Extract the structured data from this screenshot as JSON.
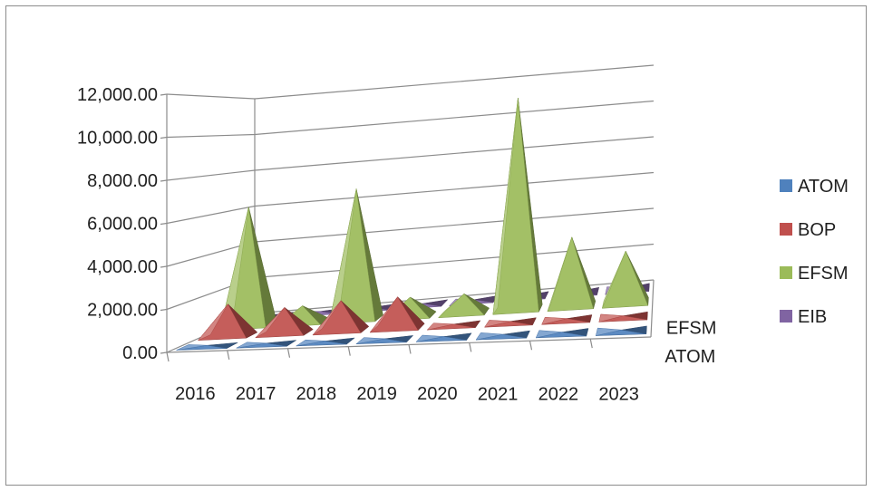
{
  "chart_data": {
    "type": "bar",
    "subtype": "3d-pyramid",
    "title": "",
    "xlabel": "",
    "ylabel": "",
    "categories": [
      "2016",
      "2017",
      "2018",
      "2019",
      "2020",
      "2021",
      "2022",
      "2023"
    ],
    "y_ticks": [
      "0.00",
      "2,000.00",
      "4,000.00",
      "6,000.00",
      "8,000.00",
      "10,000.00",
      "12,000.00"
    ],
    "ylim": [
      0,
      12000
    ],
    "depth_axis_labels": [
      "ATOM",
      "EFSM"
    ],
    "grid": true,
    "legend": "right",
    "series": [
      {
        "name": "ATOM",
        "color": "#4F81BD",
        "values": [
          50,
          50,
          50,
          50,
          50,
          50,
          50,
          50
        ]
      },
      {
        "name": "BOP",
        "color": "#C0504D",
        "values": [
          1600,
          1300,
          1500,
          1550,
          60,
          60,
          60,
          60
        ]
      },
      {
        "name": "EFSM",
        "color": "#9BBB59",
        "values": [
          6200,
          900,
          6800,
          1000,
          1000,
          11000,
          3600,
          2700
        ]
      },
      {
        "name": "EIB",
        "color": "#8064A2",
        "values": [
          60,
          60,
          60,
          60,
          60,
          60,
          60,
          60
        ]
      }
    ]
  }
}
